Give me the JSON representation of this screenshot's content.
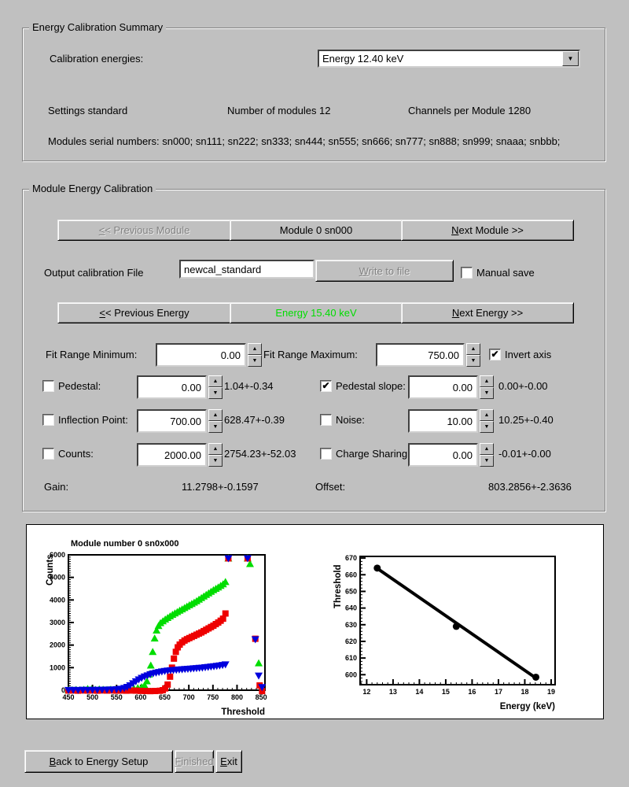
{
  "summary": {
    "title": "Energy Calibration Summary",
    "calibration_energies_label": "Calibration energies:",
    "energy_dropdown_value": "Energy 12.40 keV",
    "settings_text": "Settings standard",
    "num_modules_text": "Number of modules 12",
    "channels_text": "Channels per Module 1280",
    "serials_text": "Modules serial numbers: sn000; sn111; sn222; sn333; sn444; sn555; sn666; sn777; sn888; sn999; snaaa; snbbb;"
  },
  "module_cal": {
    "title": "Module Energy Calibration",
    "prev_module": {
      "accel": "<",
      "rest": "< Previous Module"
    },
    "module_label": "Module 0 sn000",
    "next_module": {
      "accel": "N",
      "rest": "ext Module >>"
    },
    "output_file_label": "Output calibration File",
    "output_file_value": "newcal_standard",
    "write_button": {
      "accel": "W",
      "rest": "rite to file"
    },
    "manual_save": {
      "label": "Manual save",
      "checked": false
    },
    "prev_energy": {
      "accel": "<",
      "rest": "< Previous Energy"
    },
    "energy_label": "Energy 15.40 keV",
    "energy_label_color": "#00dd00",
    "next_energy": {
      "accel": "N",
      "rest": "ext Energy >>"
    },
    "fit_min_label": "Fit Range Minimum:",
    "fit_min_value": "0.00",
    "fit_max_label": "Fit Range Maximum:",
    "fit_max_value": "750.00",
    "invert_axis": {
      "label": "Invert axis",
      "checked": true
    },
    "params": {
      "pedestal": {
        "label": "Pedestal:",
        "value": "0.00",
        "result": "1.04+-0.34",
        "checked": false
      },
      "pedestal_slope": {
        "label": "Pedestal slope:",
        "value": "0.00",
        "result": "0.00+-0.00",
        "checked": true
      },
      "inflection": {
        "label": "Inflection Point:",
        "value": "700.00",
        "result": "628.47+-0.39",
        "checked": false
      },
      "noise": {
        "label": "Noise:",
        "value": "10.00",
        "result": "10.25+-0.40",
        "checked": false
      },
      "counts": {
        "label": "Counts:",
        "value": "2000.00",
        "result": "2754.23+-52.03",
        "checked": false
      },
      "charge_sharing": {
        "label": "Charge Sharing",
        "value": "0.00",
        "result": "-0.01+-0.00",
        "checked": false
      }
    },
    "gain_label": "Gain:",
    "gain_value": "11.2798+-0.1597",
    "offset_label": "Offset:",
    "offset_value": "803.2856+-2.3636"
  },
  "footer": {
    "back": {
      "accel": "B",
      "rest": "ack to Energy Setup"
    },
    "finished": {
      "accel": "F",
      "rest": "inished"
    },
    "exit": {
      "accel": "E",
      "rest": "xit"
    }
  },
  "chart_data": [
    {
      "type": "scatter",
      "title": "Module number 0 sn0x000",
      "xlabel": "Threshold",
      "ylabel": "Counts",
      "xlim": [
        450,
        858
      ],
      "ylim": [
        0,
        6000
      ],
      "xtick_step": 50,
      "xminor_step": 10,
      "ytick_step": 1000,
      "yminor_step": 100,
      "grid": false,
      "legend": "none",
      "series": [
        {
          "name": "green-triangles-scurve",
          "marker": "triangle-up",
          "color": "#00dd00",
          "points": [
            [
              450,
              15
            ],
            [
              458,
              8
            ],
            [
              466,
              20
            ],
            [
              474,
              10
            ],
            [
              482,
              25
            ],
            [
              490,
              60
            ],
            [
              498,
              35
            ],
            [
              506,
              20
            ],
            [
              514,
              45
            ],
            [
              522,
              30
            ],
            [
              530,
              20
            ],
            [
              538,
              35
            ],
            [
              546,
              25
            ],
            [
              554,
              20
            ],
            [
              562,
              35
            ],
            [
              570,
              45
            ],
            [
              578,
              60
            ],
            [
              586,
              80
            ],
            [
              594,
              100
            ],
            [
              602,
              140
            ],
            [
              608,
              220
            ],
            [
              613,
              400
            ],
            [
              617,
              700
            ],
            [
              621,
              1100
            ],
            [
              625,
              1700
            ],
            [
              629,
              2300
            ],
            [
              633,
              2650
            ],
            [
              637,
              2850
            ],
            [
              641,
              2980
            ],
            [
              646,
              3060
            ],
            [
              651,
              3140
            ],
            [
              656,
              3210
            ],
            [
              661,
              3280
            ],
            [
              666,
              3350
            ],
            [
              671,
              3410
            ],
            [
              676,
              3470
            ],
            [
              681,
              3530
            ],
            [
              686,
              3590
            ],
            [
              691,
              3650
            ],
            [
              696,
              3710
            ],
            [
              701,
              3770
            ],
            [
              706,
              3830
            ],
            [
              711,
              3890
            ],
            [
              716,
              3950
            ],
            [
              721,
              4020
            ],
            [
              726,
              4090
            ],
            [
              731,
              4160
            ],
            [
              736,
              4230
            ],
            [
              741,
              4300
            ],
            [
              746,
              4370
            ],
            [
              751,
              4440
            ],
            [
              756,
              4500
            ],
            [
              761,
              4560
            ],
            [
              766,
              4630
            ],
            [
              771,
              4700
            ],
            [
              776,
              4800
            ],
            [
              782,
              6000
            ],
            [
              822,
              6000
            ],
            [
              827,
              5600
            ],
            [
              845,
              1200
            ]
          ]
        },
        {
          "name": "red-squares-scurve",
          "marker": "square",
          "color": "#ee0000",
          "points": [
            [
              450,
              -15
            ],
            [
              460,
              -10
            ],
            [
              470,
              -20
            ],
            [
              480,
              -10
            ],
            [
              490,
              -15
            ],
            [
              500,
              -10
            ],
            [
              510,
              -20
            ],
            [
              520,
              -10
            ],
            [
              530,
              -15
            ],
            [
              540,
              -10
            ],
            [
              550,
              -20
            ],
            [
              560,
              -15
            ],
            [
              570,
              -20
            ],
            [
              580,
              -15
            ],
            [
              590,
              -20
            ],
            [
              600,
              -30
            ],
            [
              610,
              -35
            ],
            [
              620,
              -40
            ],
            [
              630,
              -35
            ],
            [
              640,
              -25
            ],
            [
              646,
              0
            ],
            [
              651,
              80
            ],
            [
              656,
              250
            ],
            [
              661,
              600
            ],
            [
              665,
              1000
            ],
            [
              669,
              1400
            ],
            [
              673,
              1700
            ],
            [
              677,
              1900
            ],
            [
              681,
              2020
            ],
            [
              686,
              2120
            ],
            [
              691,
              2200
            ],
            [
              696,
              2260
            ],
            [
              701,
              2310
            ],
            [
              706,
              2360
            ],
            [
              711,
              2410
            ],
            [
              716,
              2460
            ],
            [
              721,
              2510
            ],
            [
              726,
              2560
            ],
            [
              731,
              2620
            ],
            [
              736,
              2680
            ],
            [
              741,
              2740
            ],
            [
              746,
              2800
            ],
            [
              751,
              2860
            ],
            [
              756,
              2930
            ],
            [
              761,
              3000
            ],
            [
              766,
              3080
            ],
            [
              771,
              3170
            ],
            [
              776,
              3400
            ],
            [
              782,
              6000
            ],
            [
              822,
              6000
            ],
            [
              838,
              2280
            ],
            [
              847,
              210
            ],
            [
              852,
              -40
            ]
          ]
        },
        {
          "name": "blue-triangles-scurve",
          "marker": "triangle-down",
          "color": "#0000dd",
          "points": [
            [
              450,
              5
            ],
            [
              460,
              10
            ],
            [
              470,
              5
            ],
            [
              480,
              12
            ],
            [
              490,
              8
            ],
            [
              500,
              15
            ],
            [
              510,
              12
            ],
            [
              520,
              18
            ],
            [
              530,
              22
            ],
            [
              540,
              28
            ],
            [
              550,
              35
            ],
            [
              558,
              55
            ],
            [
              566,
              90
            ],
            [
              572,
              140
            ],
            [
              578,
              210
            ],
            [
              584,
              300
            ],
            [
              590,
              390
            ],
            [
              596,
              470
            ],
            [
              602,
              540
            ],
            [
              608,
              600
            ],
            [
              614,
              650
            ],
            [
              620,
              700
            ],
            [
              626,
              740
            ],
            [
              632,
              770
            ],
            [
              638,
              800
            ],
            [
              644,
              825
            ],
            [
              650,
              848
            ],
            [
              656,
              865
            ],
            [
              662,
              878
            ],
            [
              668,
              890
            ],
            [
              674,
              900
            ],
            [
              680,
              912
            ],
            [
              686,
              922
            ],
            [
              692,
              932
            ],
            [
              698,
              942
            ],
            [
              704,
              952
            ],
            [
              710,
              962
            ],
            [
              716,
              972
            ],
            [
              722,
              984
            ],
            [
              728,
              996
            ],
            [
              734,
              1010
            ],
            [
              740,
              1025
            ],
            [
              746,
              1040
            ],
            [
              752,
              1055
            ],
            [
              758,
              1072
            ],
            [
              764,
              1090
            ],
            [
              770,
              1110
            ],
            [
              776,
              1140
            ],
            [
              782,
              5980
            ],
            [
              822,
              5980
            ],
            [
              838,
              2250
            ],
            [
              845,
              640
            ],
            [
              852,
              130
            ]
          ]
        }
      ]
    },
    {
      "type": "line",
      "title": "",
      "xlabel": "Energy (keV)",
      "ylabel": "Threshold",
      "xlim": [
        11.75,
        19.15
      ],
      "ylim": [
        594,
        671
      ],
      "xtick_step": 1,
      "xminor_step": 0.2,
      "ytick_step": 10,
      "yminor_step": 2,
      "grid": false,
      "legend": "none",
      "color": "#000000",
      "line": {
        "x": [
          12.4,
          18.42
        ],
        "y": [
          663.8,
          598.0
        ]
      },
      "points": [
        [
          12.4,
          664
        ],
        [
          15.4,
          629
        ],
        [
          18.42,
          598.5
        ]
      ]
    }
  ]
}
